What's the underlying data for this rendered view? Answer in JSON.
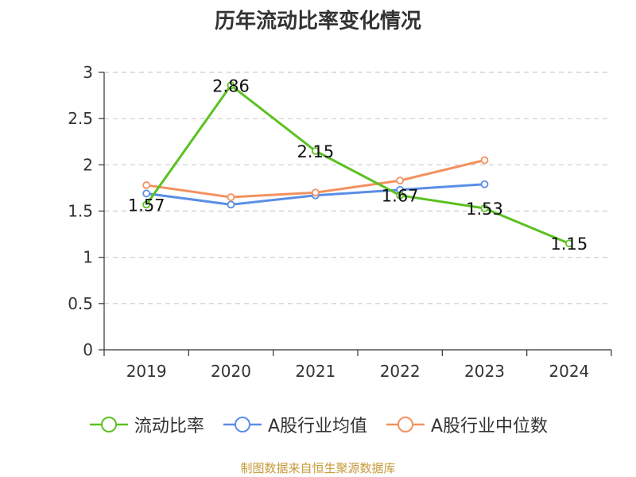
{
  "chart_data": {
    "type": "line",
    "title": "历年流动比率变化情况",
    "categories": [
      "2019",
      "2020",
      "2021",
      "2022",
      "2023",
      "2024"
    ],
    "ylim": [
      0,
      3
    ],
    "yticks": [
      "0",
      "0.5",
      "1",
      "1.5",
      "2",
      "2.5",
      "3"
    ],
    "grid": true,
    "legend_position": "bottom",
    "series": [
      {
        "name": "流动比率",
        "color": "#5cc122",
        "values": [
          1.57,
          2.86,
          2.15,
          1.67,
          1.53,
          1.15
        ],
        "labels": [
          "1.57",
          "2.86",
          "2.15",
          "1.67",
          "1.53",
          "1.15"
        ]
      },
      {
        "name": "A股行业均值",
        "color": "#5b8ee6",
        "values": [
          1.69,
          1.57,
          1.67,
          1.73,
          1.79,
          null
        ]
      },
      {
        "name": "A股行业中位数",
        "color": "#f39160",
        "values": [
          1.78,
          1.65,
          1.7,
          1.83,
          2.05,
          null
        ]
      }
    ]
  },
  "source": "制图数据来自恒生聚源数据库"
}
